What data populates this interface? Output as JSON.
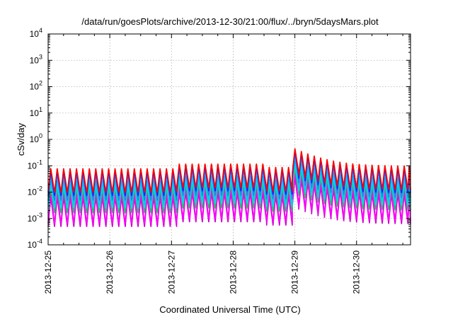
{
  "chart_data": {
    "type": "line",
    "title": "/data/run/goesPlots/archive/2013-12-30/21:00/flux/../bryn/5daysMars.plot",
    "xlabel": "Coordinated Universal Time (UTC)",
    "ylabel": "cSv/day",
    "yscale": "log",
    "ylim": [
      0.0001,
      10000
    ],
    "xlim": [
      "2013-12-25",
      "2013-12-30 21:00"
    ],
    "grid": true,
    "x_ticks": [
      "2013-12-25",
      "2013-12-26",
      "2013-12-27",
      "2013-12-28",
      "2013-12-29",
      "2013-12-30"
    ],
    "y_ticks": [
      {
        "base": "10",
        "exp": "-4"
      },
      {
        "base": "10",
        "exp": "-3"
      },
      {
        "base": "10",
        "exp": "-2"
      },
      {
        "base": "10",
        "exp": "-1"
      },
      {
        "base": "10",
        "exp": "0"
      },
      {
        "base": "10",
        "exp": "1"
      },
      {
        "base": "10",
        "exp": "2"
      },
      {
        "base": "10",
        "exp": "3"
      },
      {
        "base": "10",
        "exp": "4"
      }
    ],
    "sawtooth": {
      "period_hours": 2.5,
      "series": [
        {
          "color": "#ff0000",
          "peak": 0.1,
          "trough": 0.012
        },
        {
          "color": "#1c1cff",
          "peak": 0.085,
          "trough": 0.009
        },
        {
          "color": "#3a7be0",
          "peak": 0.06,
          "trough": 0.006
        },
        {
          "color": "#00c8ff",
          "peak": 0.035,
          "trough": 0.004
        },
        {
          "color": "#00e0e0",
          "peak": 0.025,
          "trough": 0.003
        },
        {
          "color": "#20c060",
          "peak": 0.018,
          "trough": 0.002
        },
        {
          "color": "#ff00ff",
          "peak": 0.012,
          "trough": 0.0008
        },
        {
          "color": "#d000d0",
          "peak": 0.008,
          "trough": 0.0006
        }
      ],
      "red_peak_by_day": [
        {
          "from": "2013-12-25",
          "to": "2013-12-27",
          "red_peak": 0.08
        },
        {
          "from": "2013-12-27",
          "to": "2013-12-28 12:00",
          "red_peak": 0.12
        },
        {
          "from": "2013-12-28 12:00",
          "to": "2013-12-28 22:00",
          "red_peak": 0.09
        }
      ],
      "event": {
        "start": "2013-12-28 22:00",
        "peak_scale": 5,
        "decay_hours": 18
      }
    }
  }
}
